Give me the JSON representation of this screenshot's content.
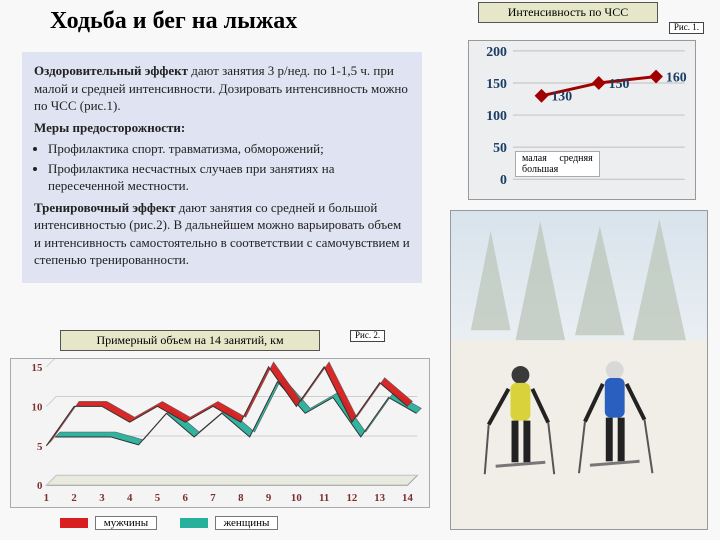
{
  "title": "Ходьба и бег на лыжах",
  "text": {
    "p1_bold": "Оздоровительный эффект",
    "p1_rest": " дают занятия 3 р/нед. по 1-1,5 ч. при малой и средней интенсивности. Дозировать интенсивность можно по ЧСС (рис.1).",
    "p2_bold": "Меры предосторожности:",
    "li1": "Профилактика спорт. травматизма, обморожений;",
    "li2": "Профилактика несчастных случаев при занятиях на пересеченной местности.",
    "p3_bold": "Тренировочный эффект",
    "p3_rest": " дают занятия со средней и большой интенсивностью (рис.2). В дальнейшем можно варьировать объем и интенсивность самостоятельно в соответствии с самочувствием и степенью тренированности."
  },
  "chart1": {
    "title": "Интенсивность по ЧСС",
    "fig": "Рис. 1.",
    "y_ticks": [
      0,
      50,
      100,
      150,
      200
    ],
    "x_labels": [
      "малая",
      "средняя",
      "большая"
    ],
    "values": [
      130,
      150,
      160
    ],
    "value_labels": [
      "130",
      "150",
      "160"
    ],
    "marker_color": "#a00000",
    "line_color": "#a00000",
    "bg": "#eceef0",
    "grid_color": "#bfbfbf",
    "text_color": "#1a3d66",
    "marker_size": 7
  },
  "chart2": {
    "title": "Примерный объем на 14 занятий, км",
    "fig": "Рис. 2.",
    "y_ticks": [
      0,
      5,
      10,
      15
    ],
    "x_labels": [
      "1",
      "2",
      "3",
      "4",
      "5",
      "6",
      "7",
      "8",
      "9",
      "10",
      "11",
      "12",
      "13",
      "14"
    ],
    "series": [
      {
        "name": "мужчины",
        "color": "#d81e1e",
        "values": [
          5,
          10,
          10,
          8,
          10,
          8,
          10,
          8,
          15,
          10,
          15,
          8,
          13,
          10
        ]
      },
      {
        "name": "женщины",
        "color": "#27b09b",
        "values": [
          5,
          5,
          5,
          4,
          8,
          5,
          8,
          5,
          12,
          8,
          10,
          5,
          10,
          8
        ]
      }
    ],
    "floor_color": "#e9eadf",
    "grid_color": "#cfcfcf",
    "label_color": "#7c2f2f",
    "y_max": 15
  },
  "photo_alt": "Two people cross-country skiing in snowy forest"
}
